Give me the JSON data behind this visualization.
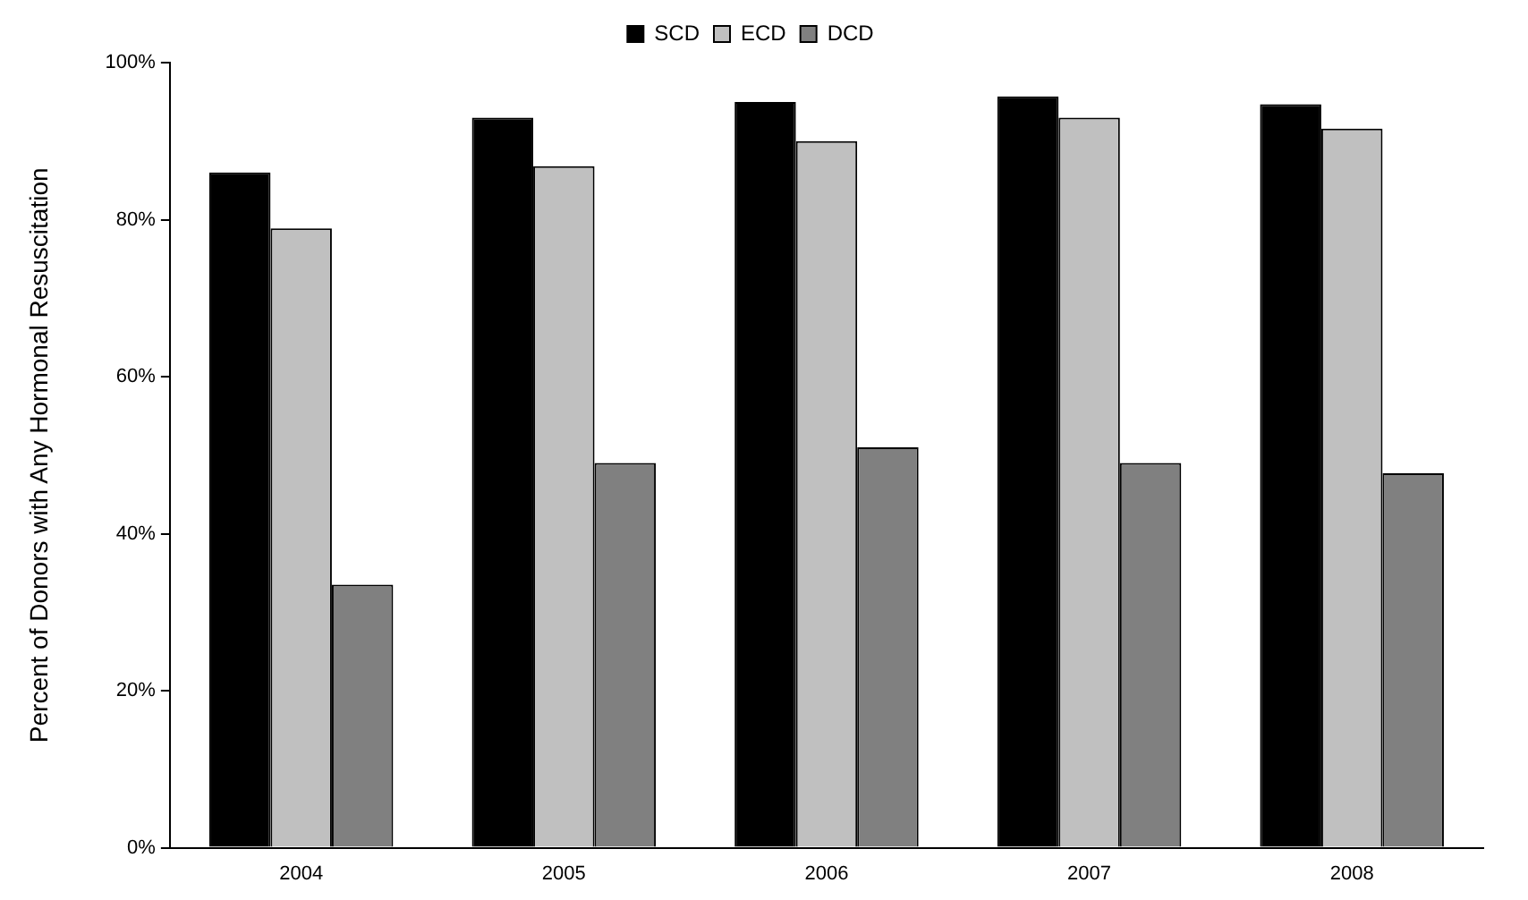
{
  "chart_data": {
    "type": "bar",
    "ylabel": "Percent of Donors with Any Hormonal Resuscitation",
    "categories": [
      "2004",
      "2005",
      "2006",
      "2007",
      "2008"
    ],
    "series": [
      {
        "name": "SCD",
        "color": "#000000",
        "values": [
          86,
          93,
          95,
          95.7,
          94.7
        ]
      },
      {
        "name": "ECD",
        "color": "#c0c0c0",
        "values": [
          78.9,
          86.8,
          90,
          93,
          91.6
        ]
      },
      {
        "name": "DCD",
        "color": "#808080",
        "values": [
          33.5,
          49,
          51,
          49,
          47.7
        ]
      }
    ],
    "ylim": [
      0,
      100
    ],
    "yticks": [
      {
        "value": 0,
        "label": "0%"
      },
      {
        "value": 20,
        "label": "20%"
      },
      {
        "value": 40,
        "label": "40%"
      },
      {
        "value": 60,
        "label": "60%"
      },
      {
        "value": 80,
        "label": "80%"
      },
      {
        "value": 100,
        "label": "100%"
      }
    ],
    "grid": false,
    "legend": "top"
  }
}
